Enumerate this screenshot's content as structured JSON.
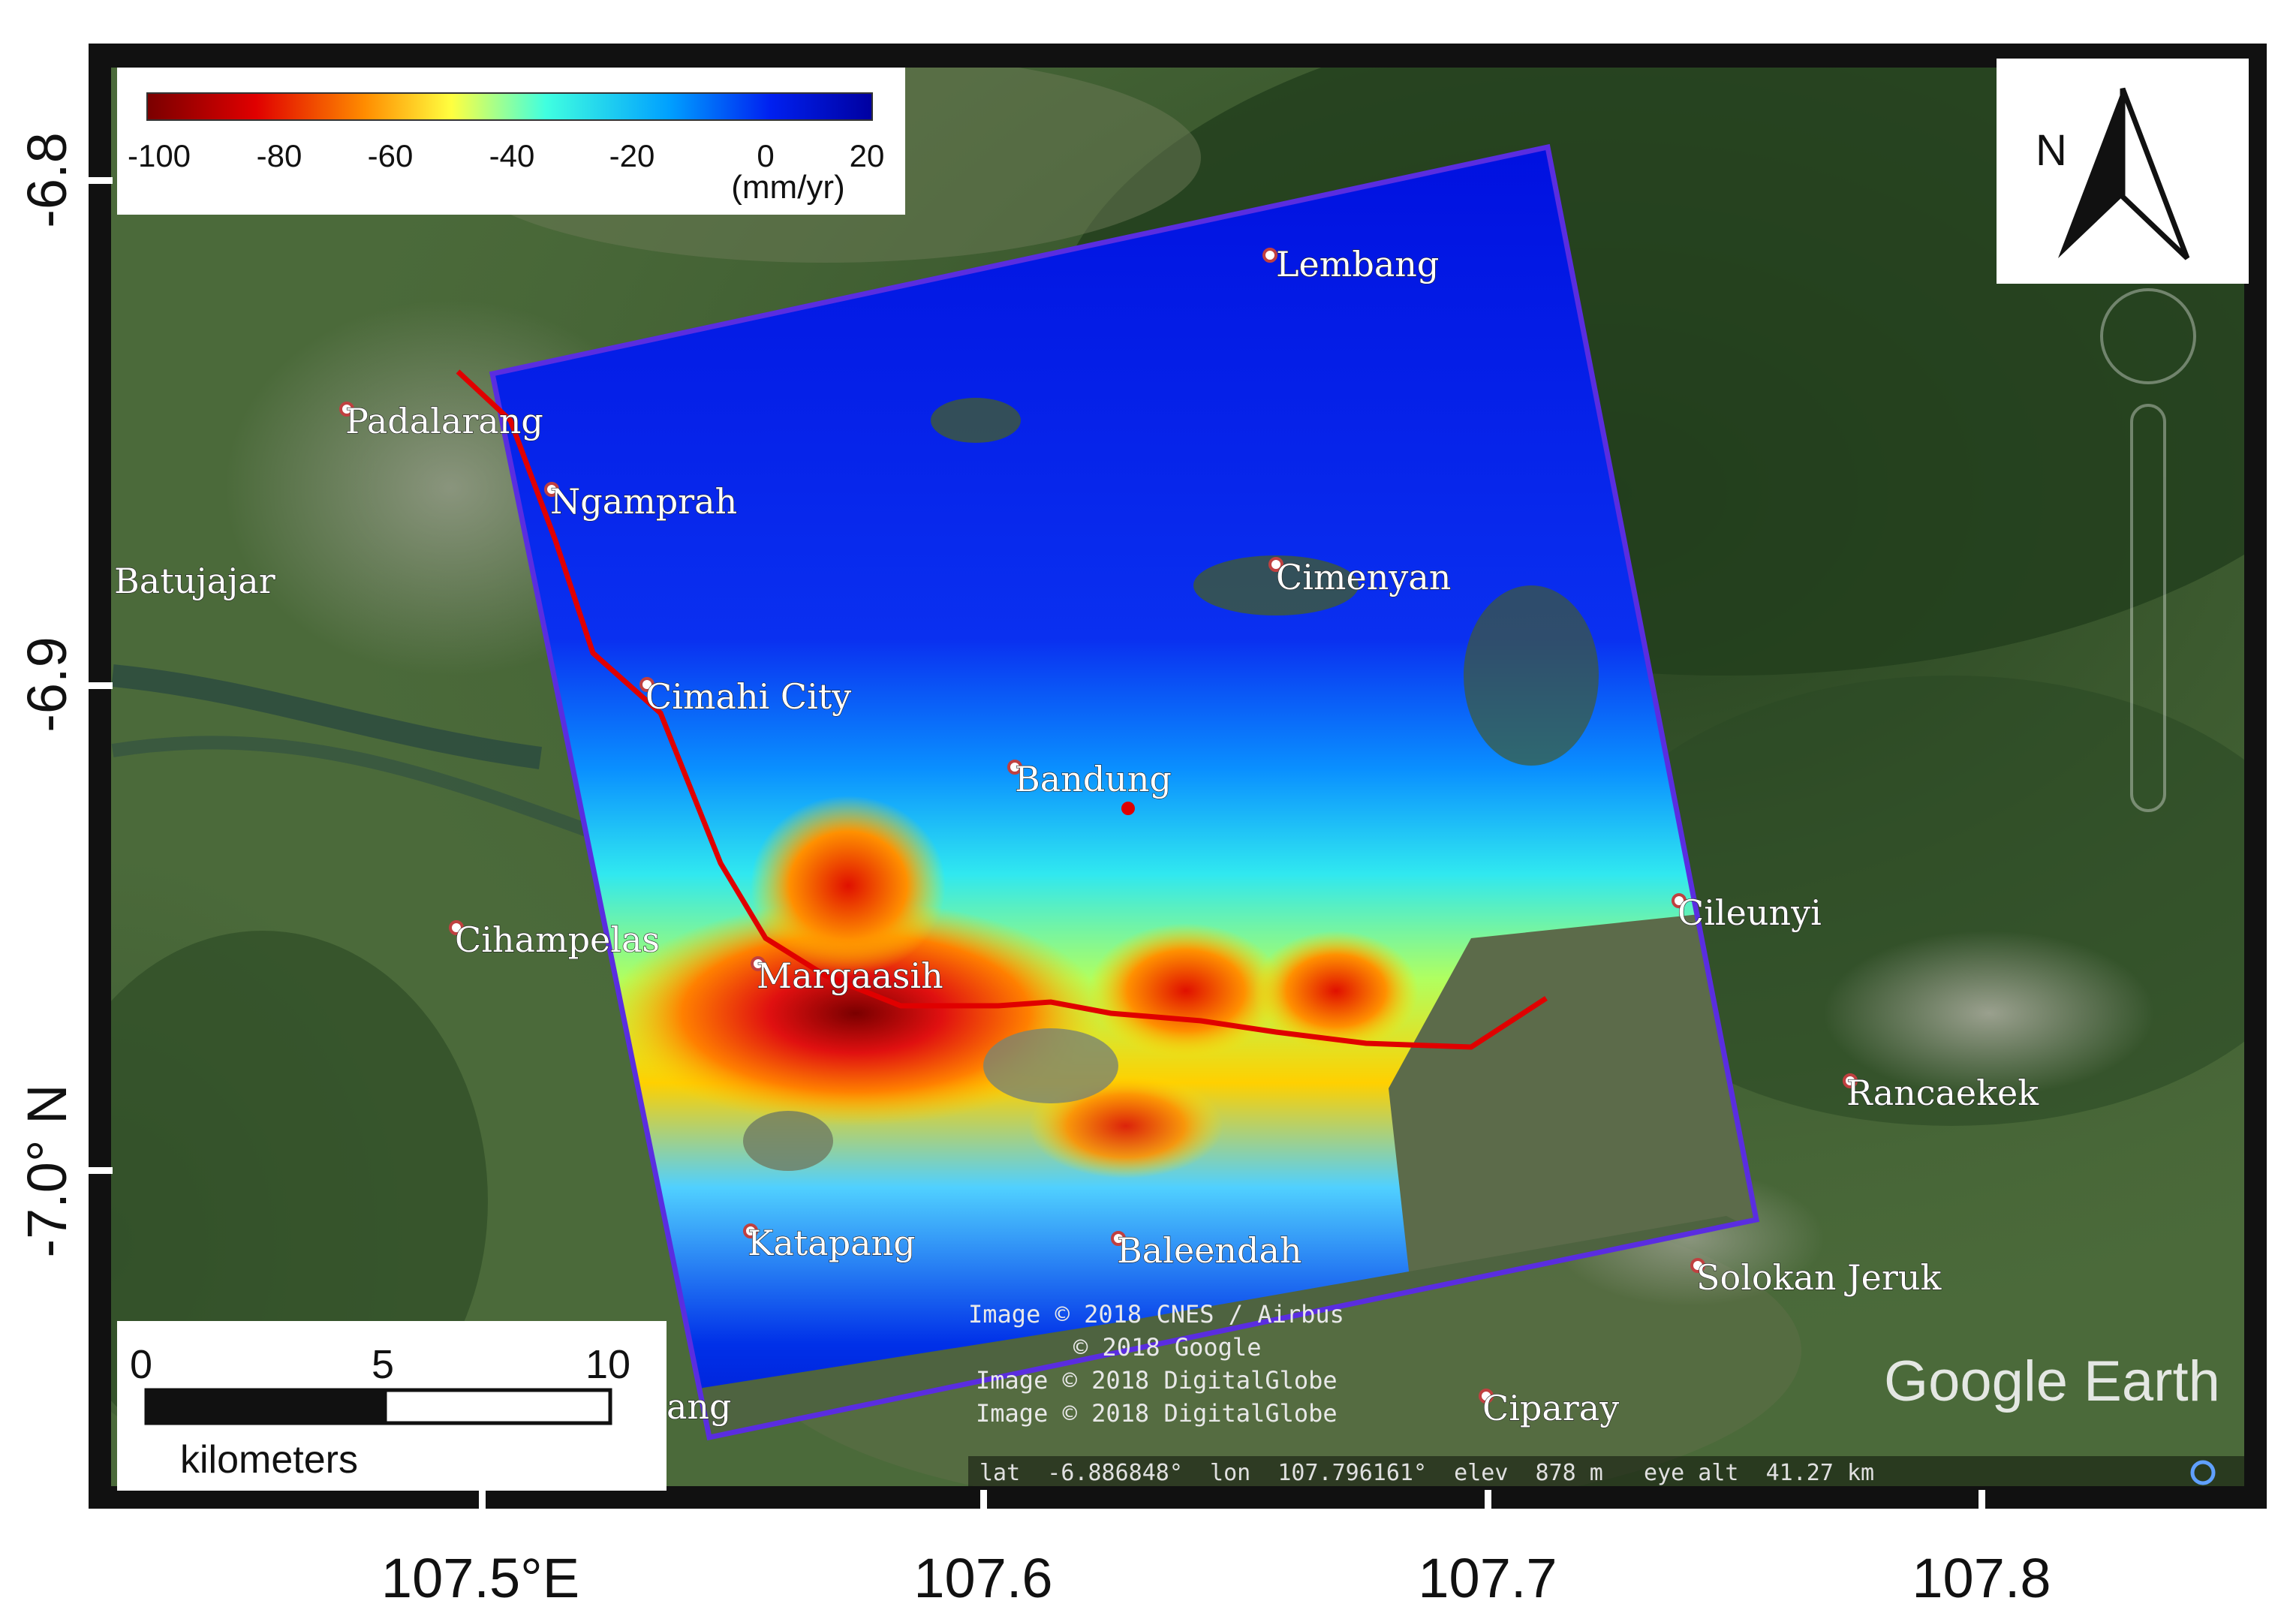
{
  "legend": {
    "ticks": [
      "-100",
      "-80",
      "-60",
      "-40",
      "-20",
      "0",
      "20"
    ],
    "unit": "(mm/yr)",
    "colors": [
      "#7a0000",
      "#e00000",
      "#ff8c00",
      "#ffff40",
      "#40ffe0",
      "#00a0ff",
      "#0000c8"
    ]
  },
  "north_arrow": {
    "label": "N",
    "icon": "north-arrow-icon"
  },
  "scale_bar": {
    "ticks": [
      "0",
      "5",
      "10"
    ],
    "unit": "kilometers"
  },
  "axes": {
    "x_ticks": [
      "107.5°E",
      "107.6",
      "107.7",
      "107.8"
    ],
    "y_ticks": [
      "-6.8",
      "-6.9",
      "-7.0° N"
    ]
  },
  "towns": [
    "Lembang",
    "Padalarang",
    "Ngamprah",
    "Batujajar",
    "Cimenyan",
    "Cimahi City",
    "Bandung",
    "Cileunyi",
    "Cihampelas",
    "Margaasih",
    "Rancaekek",
    "Katapang",
    "Baleendah",
    "Solokan Jeruk",
    "Ciparay",
    "ang"
  ],
  "credits": [
    "Image © 2018 CNES / Airbus",
    "© 2018 Google",
    "Image © 2018 DigitalGlobe",
    "Image © 2018 DigitalGlobe"
  ],
  "logo": "Google Earth",
  "status_readout": "lat  -6.886848°  lon  107.796161°  elev  878 m   eye alt  41.27 km",
  "colors": {
    "frame": "#111111",
    "footprint": "#5a2de0",
    "fault_line": "#e00000"
  }
}
